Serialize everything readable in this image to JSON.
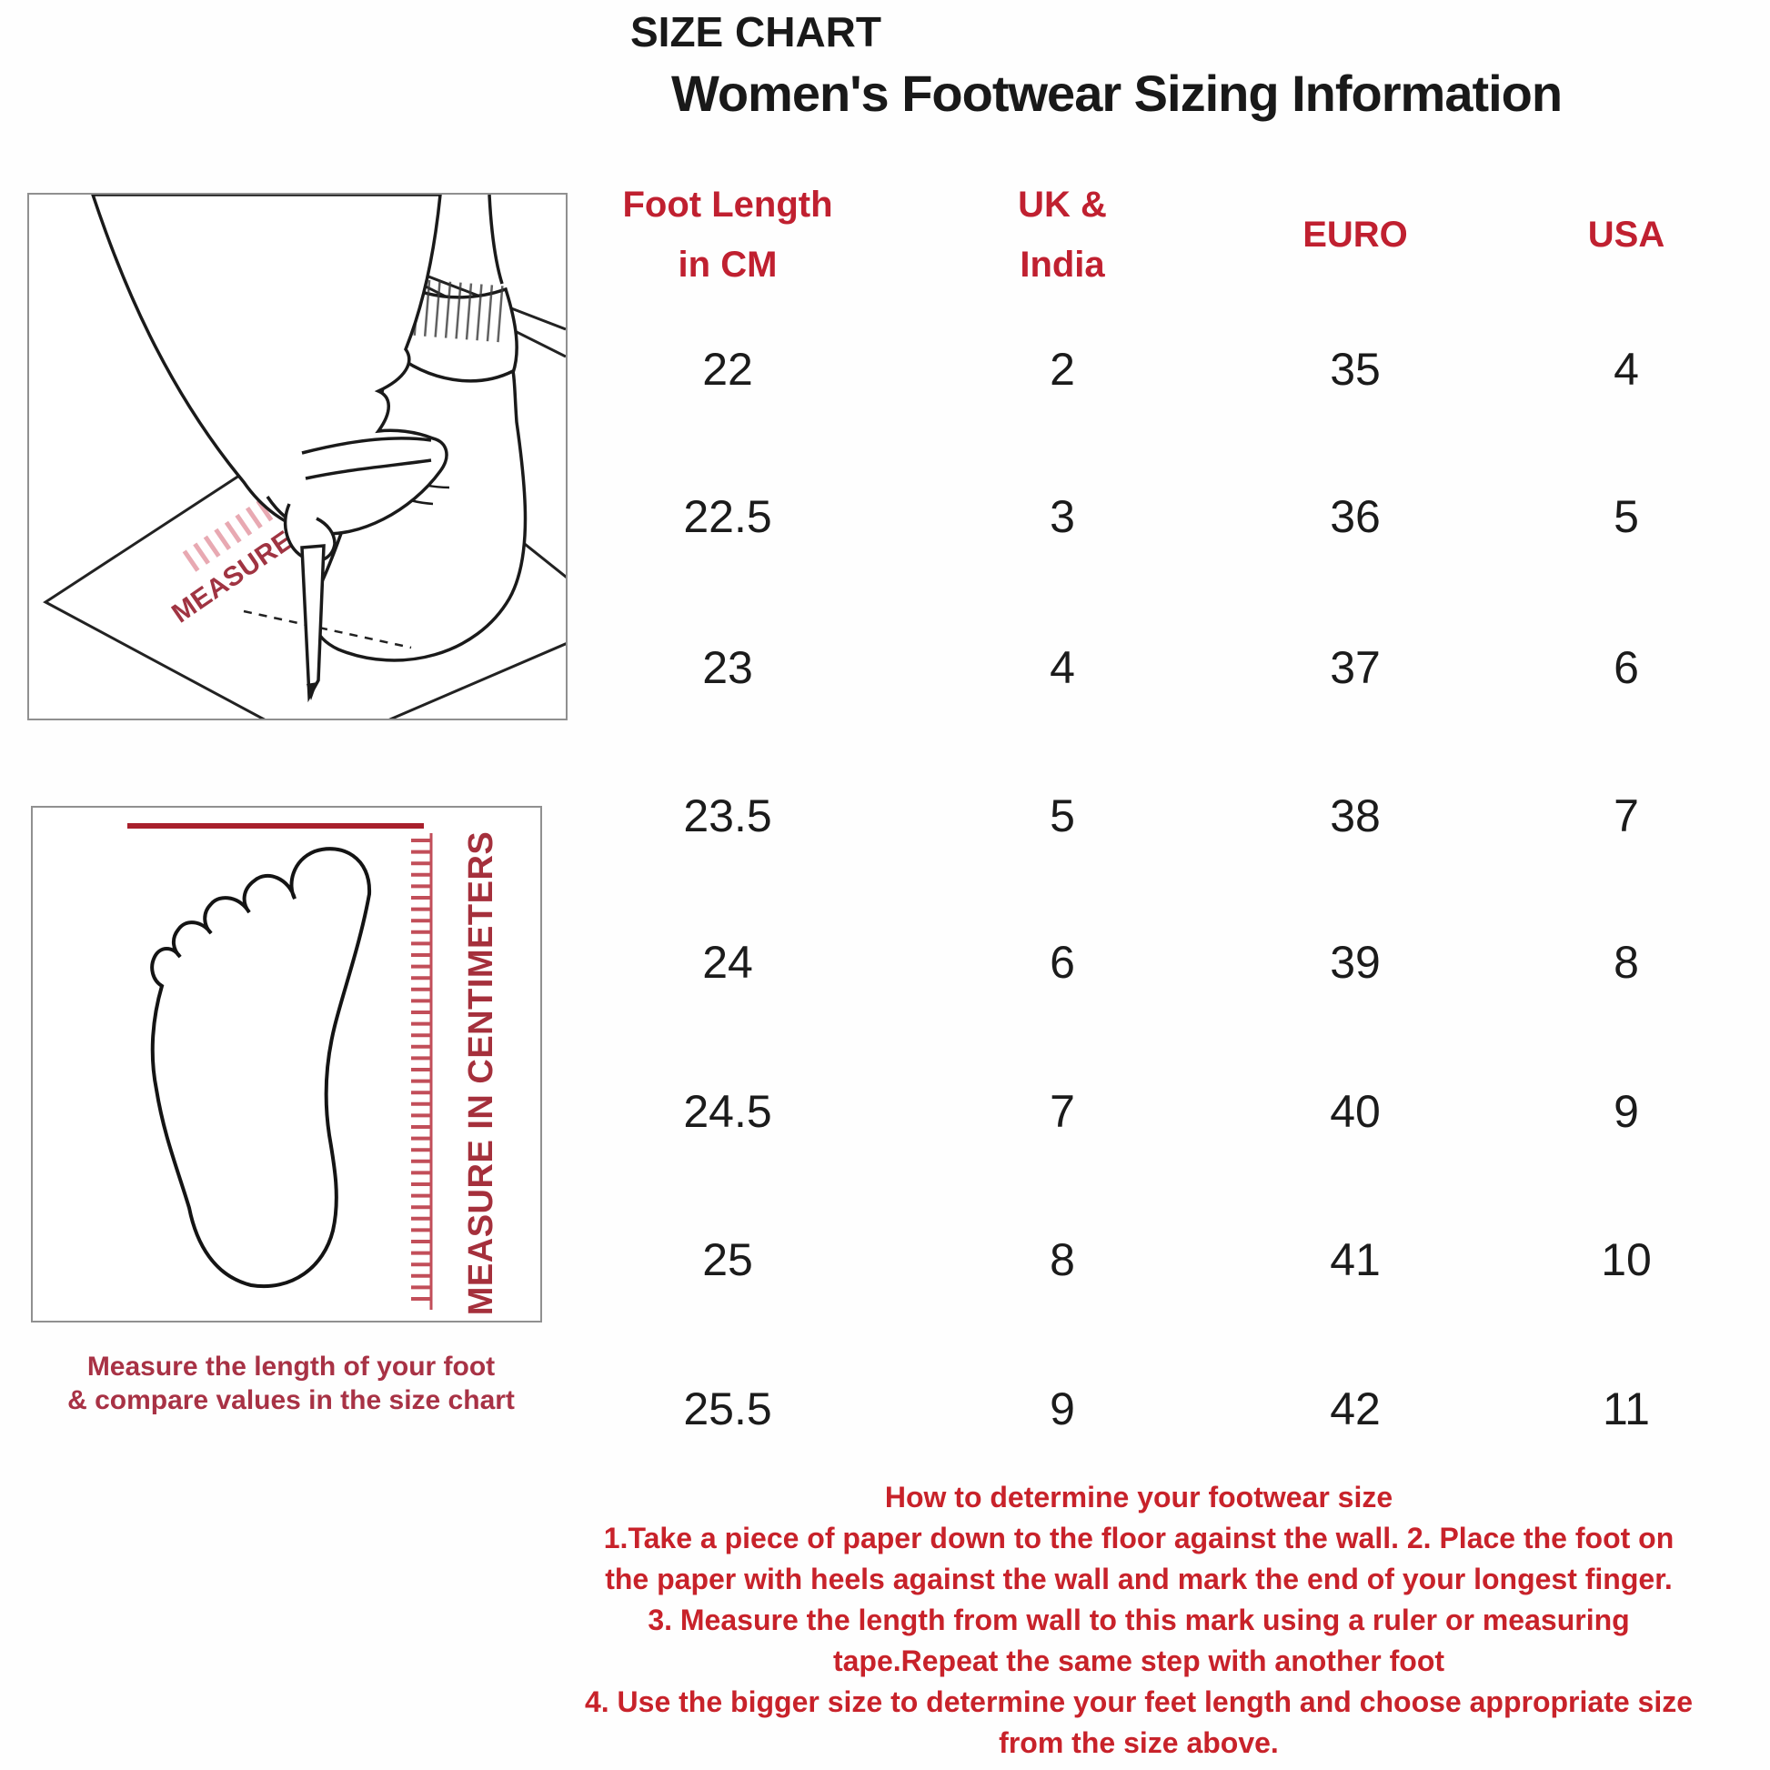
{
  "title": "SIZE CHART",
  "subtitle": "Women's Footwear Sizing Information",
  "size_table": {
    "columns": [
      {
        "key": "cm",
        "lines": [
          "Foot Length",
          "in CM"
        ]
      },
      {
        "key": "uk",
        "lines": [
          "UK &",
          "India"
        ]
      },
      {
        "key": "euro",
        "lines": [
          "EURO"
        ]
      },
      {
        "key": "usa",
        "lines": [
          "USA"
        ]
      }
    ],
    "rows": [
      {
        "cm": "22",
        "uk": "2",
        "euro": "35",
        "usa": "4"
      },
      {
        "cm": "22.5",
        "uk": "3",
        "euro": "36",
        "usa": "5"
      },
      {
        "cm": "23",
        "uk": "4",
        "euro": "37",
        "usa": "6"
      },
      {
        "cm": "23.5",
        "uk": "5",
        "euro": "38",
        "usa": "7"
      },
      {
        "cm": "24",
        "uk": "6",
        "euro": "39",
        "usa": "8"
      },
      {
        "cm": "24.5",
        "uk": "7",
        "euro": "40",
        "usa": "9"
      },
      {
        "cm": "25",
        "uk": "8",
        "euro": "41",
        "usa": "10"
      },
      {
        "cm": "25.5",
        "uk": "9",
        "euro": "42",
        "usa": "11"
      }
    ]
  },
  "chart_data": {
    "type": "table",
    "title": "SIZE CHART",
    "subtitle": "Women's Footwear Sizing Information",
    "columns": [
      "Foot Length in CM",
      "UK & India",
      "EURO",
      "USA"
    ],
    "rows": [
      [
        22,
        2,
        35,
        4
      ],
      [
        22.5,
        3,
        36,
        5
      ],
      [
        23,
        4,
        37,
        6
      ],
      [
        23.5,
        5,
        38,
        7
      ],
      [
        24,
        6,
        39,
        8
      ],
      [
        24.5,
        7,
        40,
        9
      ],
      [
        25,
        8,
        41,
        10
      ],
      [
        25.5,
        9,
        42,
        11
      ]
    ]
  },
  "illustrations": {
    "measure_foot_ruler_label": "MEASURE IN CENTIMETERS",
    "footprint_ruler_label": "MEASURE IN CENTIMETERS",
    "caption_line1": "Measure the length of your foot",
    "caption_line2": "& compare values in the size chart"
  },
  "instructions": {
    "lines": [
      "How to determine your footwear size",
      "1.Take a piece of paper down to the floor against the wall. 2. Place the foot on",
      "the paper with heels against the wall and mark the end of your longest finger.",
      "3. Measure the length from wall to this mark using a ruler or measuring",
      "tape.Repeat the same step with another foot",
      "4. Use the bigger size to determine your feet length and choose appropriate size",
      "from the size above."
    ]
  },
  "colors": {
    "header_red": "#c02030",
    "instruction_red": "#c8222a",
    "caption_maroon": "#a83245",
    "ruler_dark_red": "#a5303c",
    "ruler_pink": "#e8a9b2",
    "text_black": "#1b1b1b",
    "box_border_gray": "#909090"
  }
}
